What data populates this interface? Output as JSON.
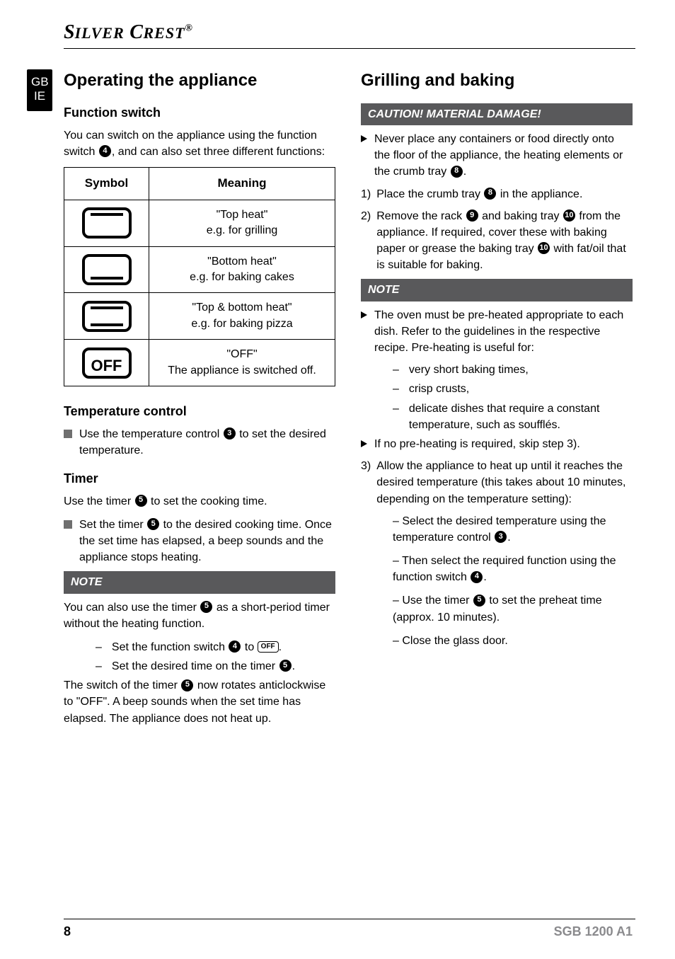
{
  "brand": "SilverCrest",
  "brand_reg": "®",
  "lang_tab": {
    "line1": "GB",
    "line2": "IE"
  },
  "footer": {
    "page": "8",
    "model": "SGB 1200 A1"
  },
  "left": {
    "h1": "Operating the appliance",
    "function_switch": {
      "heading": "Function switch",
      "intro_a": "You can switch on the appliance using the function switch ",
      "intro_num": "4",
      "intro_b": ", and can also set three different functions:",
      "table": {
        "col_symbol": "Symbol",
        "col_meaning": "Meaning",
        "rows": [
          {
            "sym": "top",
            "line1": "\"Top heat\"",
            "line2": "e.g. for grilling"
          },
          {
            "sym": "bot",
            "line1": "\"Bottom heat\"",
            "line2": "e.g. for baking  cakes"
          },
          {
            "sym": "both",
            "line1": "\"Top & bottom heat\"",
            "line2": "e.g. for baking pizza"
          },
          {
            "sym": "off",
            "off_text": "OFF",
            "line1": "\"OFF\"",
            "line2": "The appliance is switched off."
          }
        ]
      }
    },
    "temperature": {
      "heading": "Temperature control",
      "item_a": "Use the temperature control ",
      "item_num": "3",
      "item_b": " to set the desired temperature."
    },
    "timer": {
      "heading": "Timer",
      "intro_a": "Use the timer ",
      "intro_num": "5",
      "intro_b": " to set the cooking time.",
      "item_a": "Set the timer ",
      "item_num": "5",
      "item_b": " to the desired cooking time. Once the set time has elapsed, a beep sounds and the appliance stops heating."
    },
    "note": {
      "bar": "NOTE",
      "p1_a": "You can also use the timer ",
      "p1_num": "5",
      "p1_b": " as a short-period timer without the heating function.",
      "s1_a": "Set the function switch ",
      "s1_num": "4",
      "s1_b": " to ",
      "s1_off": "OFF",
      "s1_c": ".",
      "s2_a": "Set the desired time on the timer ",
      "s2_num": "5",
      "s2_b": ".",
      "p2_a": "The switch of the timer ",
      "p2_num": "5",
      "p2_b": " now rotates anticlockwise to \"OFF\". A beep sounds when the set time has elapsed. The appliance does not heat up."
    }
  },
  "right": {
    "h1": "Grilling and baking",
    "caution": {
      "bar": "CAUTION! MATERIAL DAMAGE!",
      "a": "Never place any containers or food directly onto the floor of the appliance, the heating elements or the crumb tray ",
      "num": "8",
      "b": "."
    },
    "step1": {
      "num": "1)",
      "a": "Place the crumb tray ",
      "n": "8",
      "b": " in the appliance."
    },
    "step2": {
      "num": "2)",
      "a": "Remove the rack ",
      "n1": "9",
      "b": " and baking tray ",
      "n2": "10",
      "c": " from the appliance. If required, cover these with baking paper or grease the baking tray ",
      "n3": "10",
      "d": " with fat/oil that is suitable for baking."
    },
    "note": {
      "bar": "NOTE",
      "tri1": "The oven must be pre-heated appropriate to each dish. Refer to the guidelines in the respective recipe. Pre-heating is useful for:",
      "s1": "very short baking times,",
      "s2": "crisp crusts,",
      "s3": "delicate dishes that require a constant temperature, such as soufflés.",
      "tri2": "If no pre-heating is required, skip step 3)."
    },
    "step3": {
      "num": "3)",
      "text": "Allow the appliance to heat up until it reaches the desired temperature (this takes about 10 minutes, depending on the temperature setting):",
      "s1a": "Select the desired temperature using the temperature control ",
      "s1n": "3",
      "s1b": ".",
      "s2a": "Then select the required function using the function switch ",
      "s2n": "4",
      "s2b": ".",
      "s3a": "Use the timer ",
      "s3n": "5",
      "s3b": " to set the preheat time (approx. 10 minutes).",
      "s4": "Close the glass door."
    }
  }
}
